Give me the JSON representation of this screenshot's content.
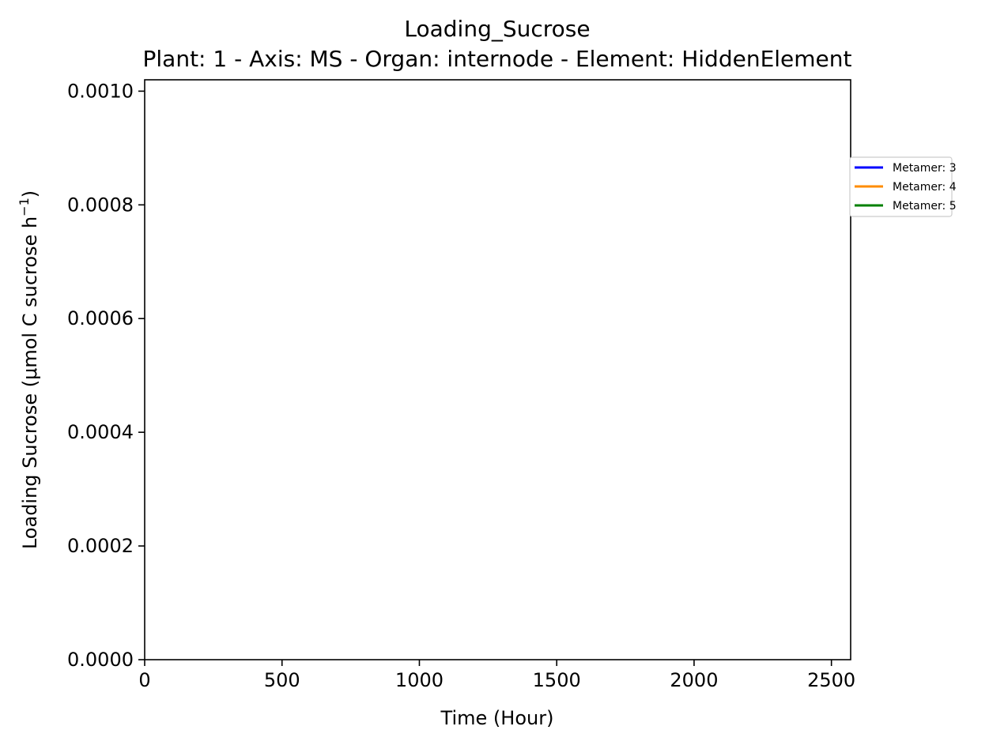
{
  "chart_data": {
    "type": "line",
    "title": "Loading_Sucrose",
    "subtitle": "Plant: 1 - Axis: MS - Organ: internode - Element: HiddenElement",
    "xlabel": "Time (Hour)",
    "ylabel": "Loading Sucrose (μmol C sucrose h",
    "ylabel_sup": "−1",
    "ylabel_end": ")",
    "xlim": [
      0,
      2570
    ],
    "ylim": [
      0,
      0.00102
    ],
    "xticks": [
      0,
      500,
      1000,
      1500,
      2000,
      2500
    ],
    "xtick_labels": [
      "0",
      "500",
      "1000",
      "1500",
      "2000",
      "2500"
    ],
    "yticks": [
      0,
      0.0002,
      0.0004,
      0.0006,
      0.0008,
      0.001
    ],
    "ytick_labels": [
      "0.0000",
      "0.0002",
      "0.0004",
      "0.0006",
      "0.0008",
      "0.0010"
    ],
    "grid": false,
    "legend_position": "outside-right-top",
    "series": [
      {
        "name": "Metamer: 3",
        "color": "#0000ff",
        "x": [],
        "y": []
      },
      {
        "name": "Metamer: 4",
        "color": "#ff8c00",
        "x": [],
        "y": []
      },
      {
        "name": "Metamer: 5",
        "color": "#008000",
        "x": [],
        "y": []
      }
    ]
  }
}
